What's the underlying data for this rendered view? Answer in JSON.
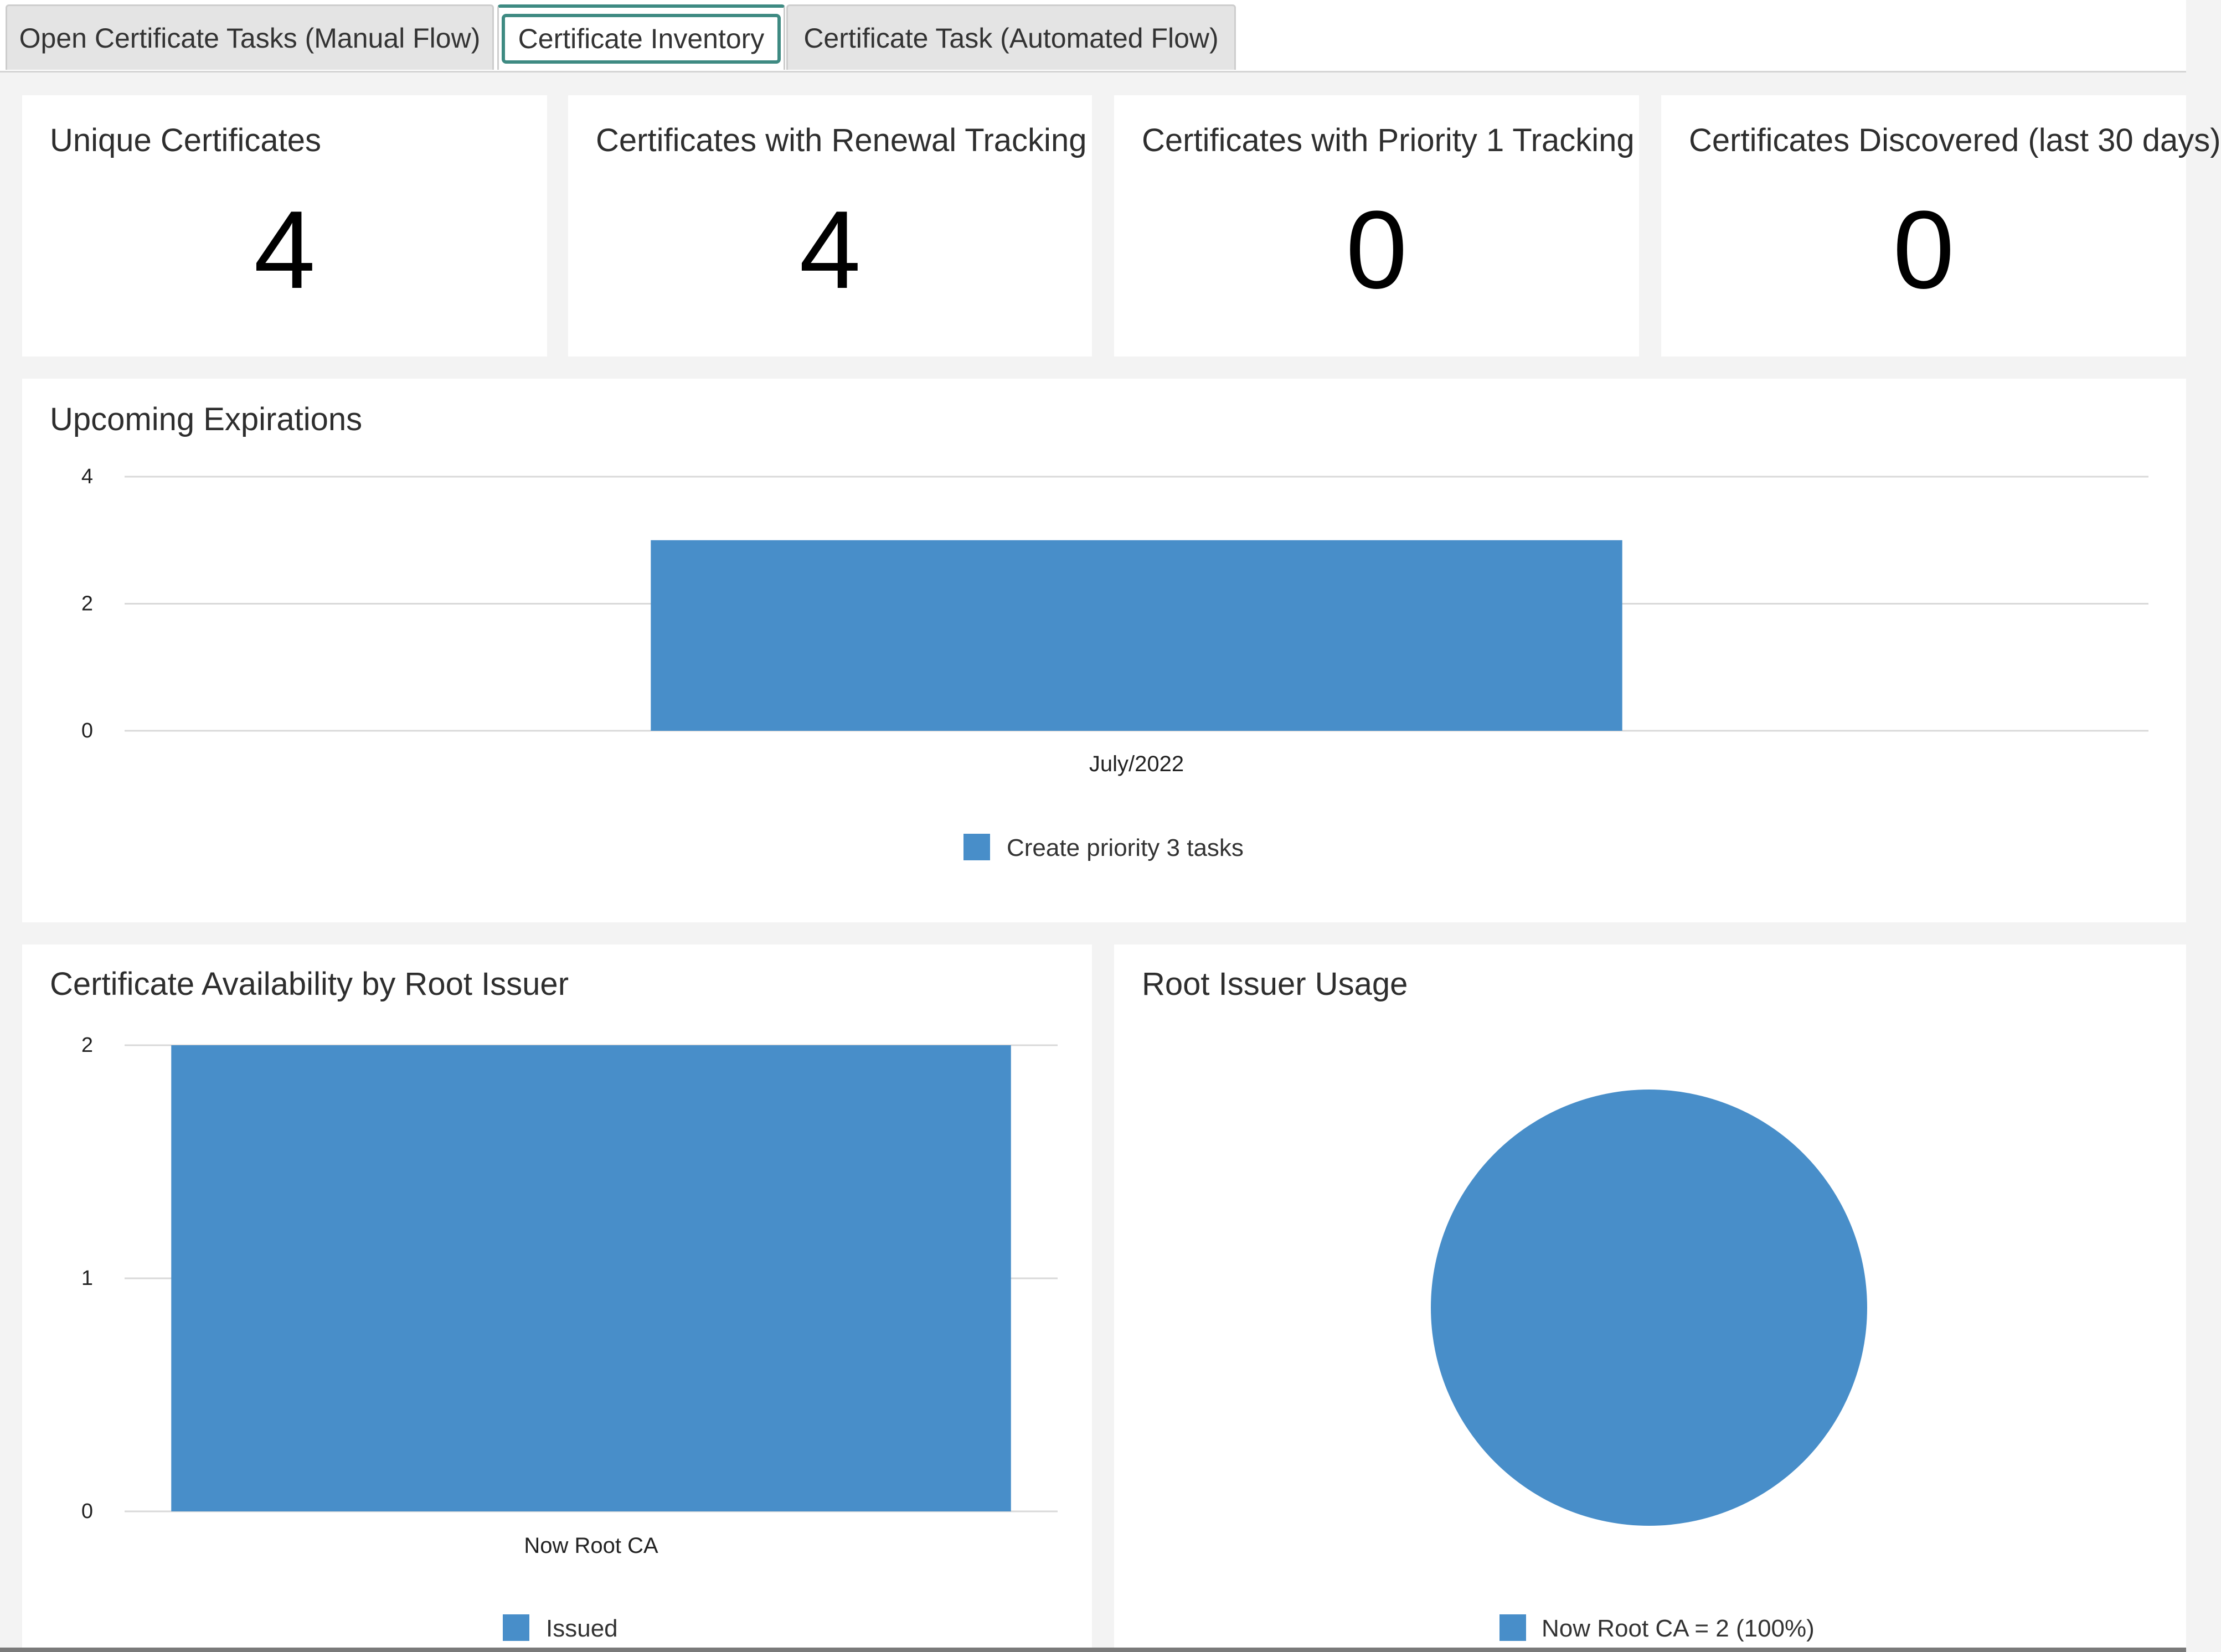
{
  "tabs": [
    {
      "label": "Open Certificate Tasks (Manual Flow)",
      "active": false
    },
    {
      "label": "Certificate Inventory",
      "active": true
    },
    {
      "label": "Certificate Task (Automated Flow)",
      "active": false
    }
  ],
  "kpis": [
    {
      "title": "Unique Certificates",
      "value": "4"
    },
    {
      "title": "Certificates with Renewal Tracking",
      "value": "4"
    },
    {
      "title": "Certificates with Priority 1 Tracking",
      "value": "0"
    },
    {
      "title": "Certificates Discovered (last 30 days)",
      "value": "0"
    }
  ],
  "expirations": {
    "title": "Upcoming Expirations"
  },
  "availability": {
    "title": "Certificate Availability by Root Issuer"
  },
  "usage": {
    "title": "Root Issuer Usage"
  },
  "colors": {
    "accent": "#3e8a82",
    "bar": "#488ec9",
    "grid": "#d9d9d9"
  },
  "chart_data": [
    {
      "type": "bar",
      "categories": [
        "July/2022"
      ],
      "series": [
        {
          "name": "Create priority 3 tasks",
          "values": [
            3
          ]
        }
      ],
      "ylim": [
        0,
        4
      ],
      "yticks": [
        "0",
        "2",
        "4"
      ],
      "legend": "bottom-center",
      "grid": true
    },
    {
      "type": "bar",
      "categories": [
        "Now Root CA"
      ],
      "series": [
        {
          "name": "Issued",
          "values": [
            2
          ]
        }
      ],
      "ylim": [
        0,
        2
      ],
      "yticks": [
        "0",
        "1",
        "2"
      ],
      "legend": "bottom-center",
      "grid": true
    },
    {
      "type": "pie",
      "categories": [
        "Now Root CA"
      ],
      "values": [
        2
      ],
      "legend_labels": [
        "Now Root CA = 2 (100%)"
      ],
      "legend": "bottom-center"
    }
  ]
}
